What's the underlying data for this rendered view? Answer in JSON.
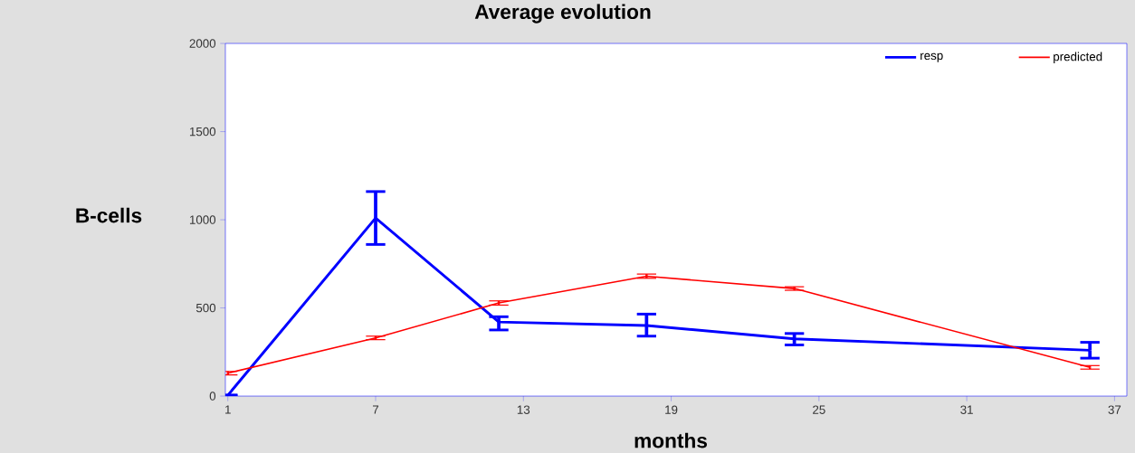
{
  "chart_data": {
    "type": "line",
    "title": "Average evolution",
    "xlabel": "months",
    "ylabel": "B-cells",
    "x": [
      1,
      7,
      12,
      18,
      24,
      36
    ],
    "xlim": [
      0.9,
      37.5
    ],
    "ylim": [
      0,
      2000
    ],
    "xticks": [
      1,
      7,
      13,
      19,
      25,
      31,
      37
    ],
    "yticks": [
      0,
      500,
      1000,
      1500,
      2000
    ],
    "legend": "top right",
    "grid": false,
    "marker": "none",
    "line_style": "solid",
    "series": [
      {
        "name": "resp",
        "color": "#0000ff",
        "values": [
          5,
          1010,
          420,
          400,
          325,
          260
        ],
        "errors": [
          null,
          [
            860,
            1160
          ],
          [
            375,
            450
          ],
          [
            340,
            465
          ],
          [
            290,
            355
          ],
          [
            215,
            305
          ]
        ]
      },
      {
        "name": "predicted",
        "color": "#ff0000",
        "values": [
          130,
          330,
          528,
          680,
          610,
          163
        ],
        "errors": [
          10,
          10,
          12,
          12,
          10,
          10
        ]
      }
    ]
  }
}
